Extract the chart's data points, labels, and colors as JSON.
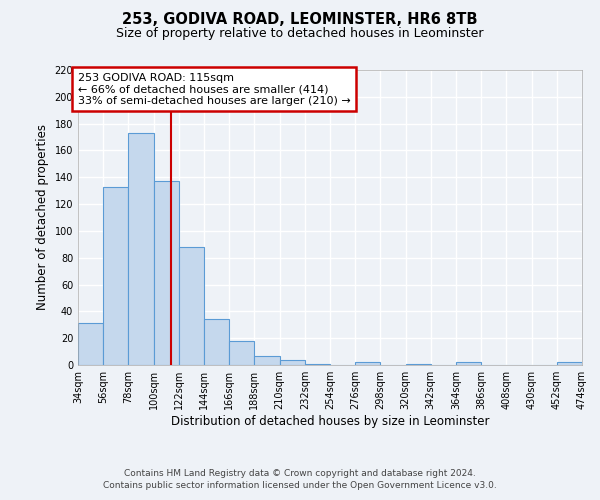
{
  "title": "253, GODIVA ROAD, LEOMINSTER, HR6 8TB",
  "subtitle": "Size of property relative to detached houses in Leominster",
  "xlabel": "Distribution of detached houses by size in Leominster",
  "ylabel": "Number of detached properties",
  "bin_edges": [
    34,
    56,
    78,
    100,
    122,
    144,
    166,
    188,
    210,
    232,
    254,
    276,
    298,
    320,
    342,
    364,
    386,
    408,
    430,
    452,
    474
  ],
  "bar_heights": [
    31,
    133,
    173,
    137,
    88,
    34,
    18,
    7,
    4,
    1,
    0,
    2,
    0,
    1,
    0,
    2,
    0,
    0,
    0,
    2
  ],
  "bar_color": "#c5d8ed",
  "bar_edge_color": "#5b9bd5",
  "vline_x": 115,
  "vline_color": "#cc0000",
  "annotation_line1": "253 GODIVA ROAD: 115sqm",
  "annotation_line2": "← 66% of detached houses are smaller (414)",
  "annotation_line3": "33% of semi-detached houses are larger (210) →",
  "annotation_box_color": "#cc0000",
  "ylim": [
    0,
    220
  ],
  "yticks": [
    0,
    20,
    40,
    60,
    80,
    100,
    120,
    140,
    160,
    180,
    200,
    220
  ],
  "x_tick_labels": [
    "34sqm",
    "56sqm",
    "78sqm",
    "100sqm",
    "122sqm",
    "144sqm",
    "166sqm",
    "188sqm",
    "210sqm",
    "232sqm",
    "254sqm",
    "276sqm",
    "298sqm",
    "320sqm",
    "342sqm",
    "364sqm",
    "386sqm",
    "408sqm",
    "430sqm",
    "452sqm",
    "474sqm"
  ],
  "footer_text": "Contains HM Land Registry data © Crown copyright and database right 2024.\nContains public sector information licensed under the Open Government Licence v3.0.",
  "background_color": "#eef2f7",
  "grid_color": "#ffffff",
  "title_fontsize": 10.5,
  "subtitle_fontsize": 9,
  "axis_label_fontsize": 8.5,
  "tick_fontsize": 7,
  "annotation_fontsize": 8,
  "footer_fontsize": 6.5
}
